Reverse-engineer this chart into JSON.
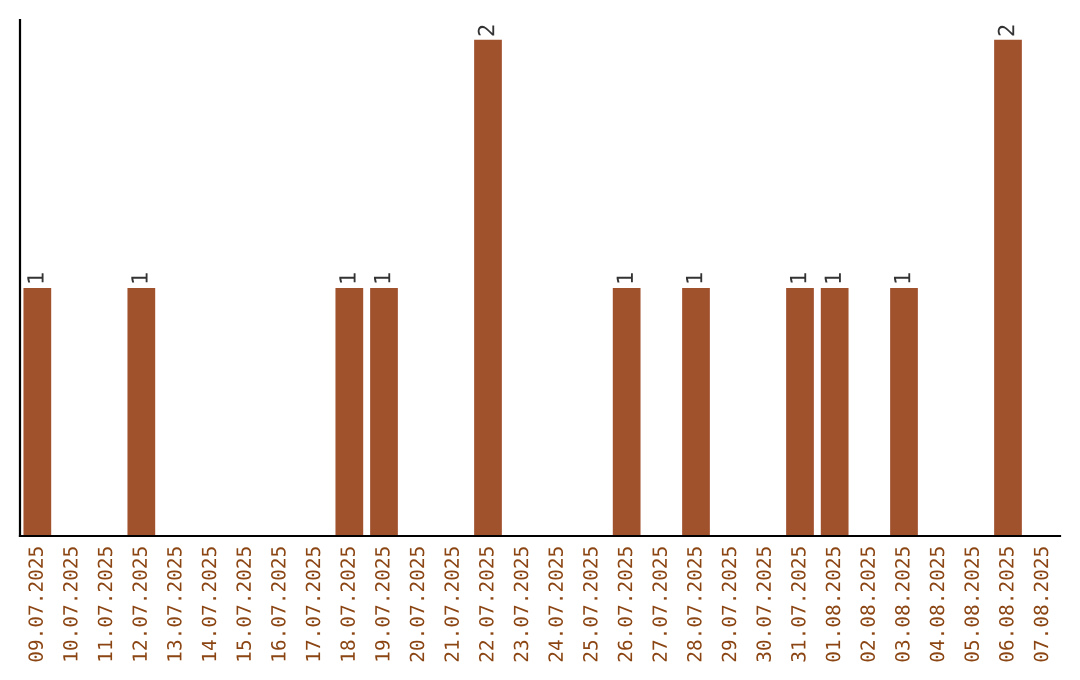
{
  "chart_data": {
    "type": "bar",
    "categories": [
      "09.07.2025",
      "10.07.2025",
      "11.07.2025",
      "12.07.2025",
      "13.07.2025",
      "14.07.2025",
      "15.07.2025",
      "16.07.2025",
      "17.07.2025",
      "18.07.2025",
      "19.07.2025",
      "20.07.2025",
      "21.07.2025",
      "22.07.2025",
      "23.07.2025",
      "24.07.2025",
      "25.07.2025",
      "26.07.2025",
      "27.07.2025",
      "28.07.2025",
      "29.07.2025",
      "30.07.2025",
      "31.07.2025",
      "01.08.2025",
      "02.08.2025",
      "03.08.2025",
      "04.08.2025",
      "05.08.2025",
      "06.08.2025",
      "07.08.2025"
    ],
    "values": [
      1,
      0,
      0,
      1,
      0,
      0,
      0,
      0,
      0,
      1,
      1,
      0,
      0,
      2,
      0,
      0,
      0,
      1,
      0,
      1,
      0,
      0,
      1,
      1,
      0,
      1,
      0,
      0,
      2,
      0
    ],
    "value_labels": [
      "1",
      null,
      null,
      "1",
      null,
      null,
      null,
      null,
      null,
      "1",
      "1",
      null,
      null,
      "2",
      null,
      null,
      null,
      "1",
      null,
      "1",
      null,
      null,
      "1",
      "1",
      null,
      "1",
      null,
      null,
      "2",
      null
    ],
    "color": "#a0522d",
    "tick_labels": "x",
    "grid": false
  }
}
